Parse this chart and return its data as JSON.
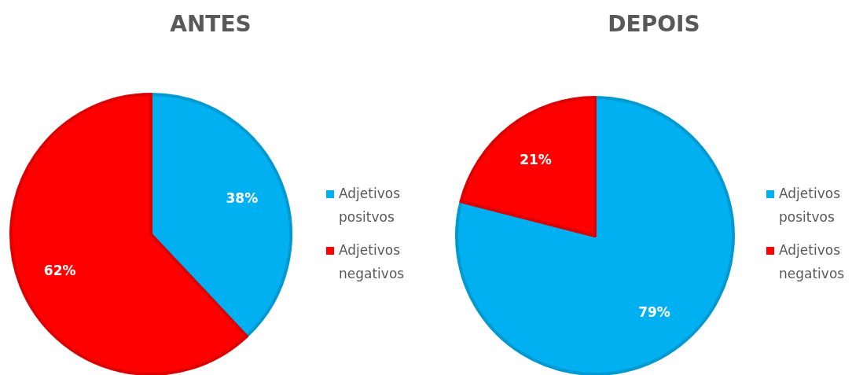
{
  "chart_data": [
    {
      "type": "pie",
      "title": "ANTES",
      "categories": [
        "Adjetivos positvos",
        "Adjetivos negativos"
      ],
      "values": [
        38,
        62
      ],
      "value_labels": [
        "38%",
        "62%"
      ],
      "colors": [
        "#00b0f0",
        "#ff0000"
      ],
      "legend": "right"
    },
    {
      "type": "pie",
      "title": "DEPOIS",
      "categories": [
        "Adjetivos positvos",
        "Adjetivos negativos"
      ],
      "values": [
        79,
        21
      ],
      "value_labels": [
        "79%",
        "21%"
      ],
      "colors": [
        "#00b0f0",
        "#ff0000"
      ],
      "legend": "right"
    }
  ]
}
